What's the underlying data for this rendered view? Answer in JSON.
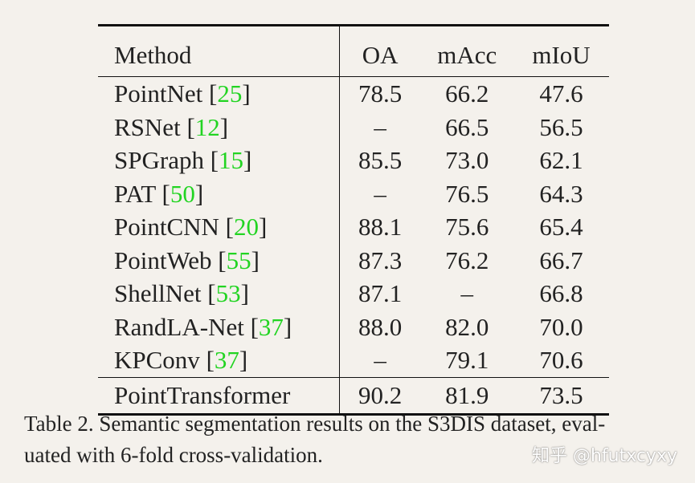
{
  "table": {
    "headers": [
      "Method",
      "OA",
      "mAcc",
      "mIoU"
    ],
    "rows": [
      {
        "method": "PointNet",
        "cite": "25",
        "oa": "78.5",
        "macc": "66.2",
        "miou": "47.6"
      },
      {
        "method": "RSNet",
        "cite": "12",
        "oa": "–",
        "macc": "66.5",
        "miou": "56.5"
      },
      {
        "method": "SPGraph",
        "cite": "15",
        "oa": "85.5",
        "macc": "73.0",
        "miou": "62.1"
      },
      {
        "method": "PAT",
        "cite": "50",
        "oa": "–",
        "macc": "76.5",
        "miou": "64.3"
      },
      {
        "method": "PointCNN",
        "cite": "20",
        "oa": "88.1",
        "macc": "75.6",
        "miou": "65.4"
      },
      {
        "method": "PointWeb",
        "cite": "55",
        "oa": "87.3",
        "macc": "76.2",
        "miou": "66.7"
      },
      {
        "method": "ShellNet",
        "cite": "53",
        "oa": "87.1",
        "macc": "–",
        "miou": "66.8"
      },
      {
        "method": "RandLA-Net",
        "cite": "37",
        "oa": "88.0",
        "macc": "82.0",
        "miou": "70.0"
      },
      {
        "method": "KPConv",
        "cite": "37",
        "oa": "–",
        "macc": "79.1",
        "miou": "70.6"
      }
    ],
    "final_row": {
      "method": "PointTransformer",
      "oa": "90.2",
      "macc": "81.9",
      "miou": "73.5"
    }
  },
  "caption": "Table 2. Semantic segmentation results on the S3DIS dataset, evaluated with 6-fold cross-validation.",
  "caption_line1": "Table 2. Semantic segmentation results on the S3DIS dataset, eval-",
  "caption_line2": "uated with 6-fold cross-validation.",
  "watermark": "知乎 @hfutxcyxy",
  "colors": {
    "background": "#f4f1ec",
    "text": "#222222",
    "citation": "#22d422",
    "rule": "#111111"
  }
}
